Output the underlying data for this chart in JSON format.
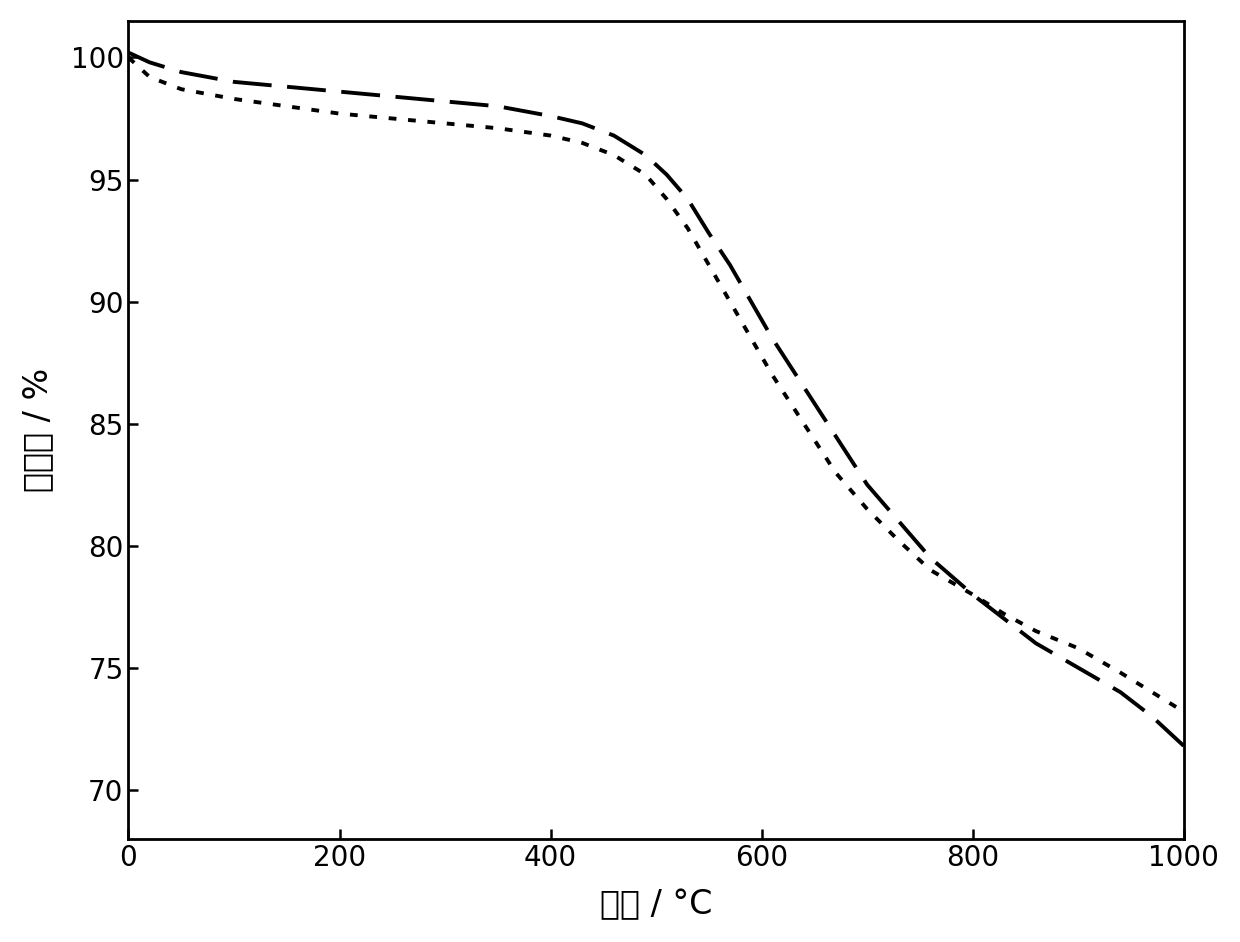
{
  "title": "",
  "xlabel": "温度 / °C",
  "ylabel": "残余量 / %",
  "xlim": [
    0,
    1000
  ],
  "ylim": [
    68,
    101.5
  ],
  "yticks": [
    70,
    75,
    80,
    85,
    90,
    95,
    100
  ],
  "xticks": [
    0,
    200,
    400,
    600,
    800,
    1000
  ],
  "background_color": "#ffffff",
  "line_color": "#000000",
  "linewidth": 2.8,
  "curve_dash_x": [
    0,
    20,
    50,
    100,
    150,
    200,
    250,
    300,
    350,
    400,
    430,
    460,
    490,
    510,
    530,
    550,
    570,
    590,
    610,
    640,
    670,
    700,
    730,
    760,
    800,
    830,
    860,
    900,
    940,
    970,
    1000
  ],
  "curve_dash_y": [
    100.2,
    99.8,
    99.4,
    99.0,
    98.8,
    98.6,
    98.4,
    98.2,
    98.0,
    97.6,
    97.3,
    96.8,
    96.0,
    95.2,
    94.2,
    92.8,
    91.5,
    90.0,
    88.5,
    86.5,
    84.5,
    82.5,
    81.0,
    79.5,
    78.0,
    77.0,
    76.0,
    75.0,
    74.0,
    73.0,
    71.8
  ],
  "curve_dot_x": [
    0,
    20,
    50,
    100,
    150,
    200,
    250,
    300,
    350,
    400,
    430,
    460,
    490,
    510,
    530,
    550,
    570,
    590,
    610,
    640,
    670,
    700,
    730,
    760,
    800,
    830,
    860,
    900,
    940,
    970,
    1000
  ],
  "curve_dot_y": [
    100.0,
    99.2,
    98.7,
    98.3,
    98.0,
    97.7,
    97.5,
    97.3,
    97.1,
    96.8,
    96.5,
    96.0,
    95.2,
    94.2,
    93.0,
    91.5,
    90.0,
    88.5,
    87.0,
    85.0,
    83.0,
    81.5,
    80.2,
    79.0,
    78.0,
    77.2,
    76.5,
    75.8,
    74.8,
    74.0,
    73.2
  ]
}
